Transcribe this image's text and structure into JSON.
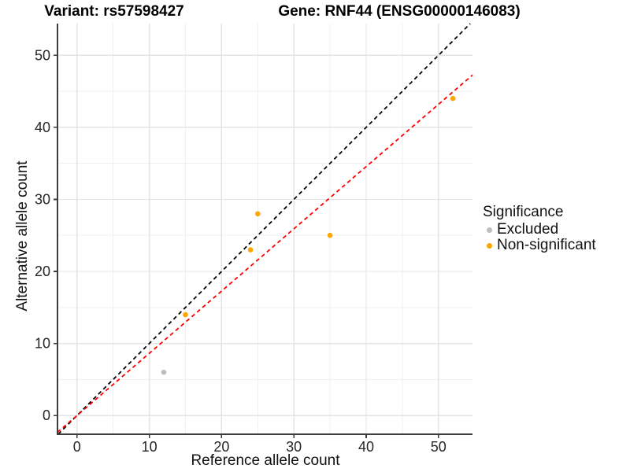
{
  "colors": {
    "axis": "#3d3d3d",
    "grid_major": "#e4e4e4",
    "grid_minor": "#f0f0f0",
    "tick_text": "#262626",
    "excluded": "#bebebe",
    "non_significant": "#ffa500",
    "identity_line": "#000000",
    "fit_line": "#ff0000"
  },
  "chart_data": {
    "type": "scatter",
    "titles": [
      "Variant: rs57598427",
      "Gene: RNF44 (ENSG00000146083)"
    ],
    "xlabel": "Reference allele count",
    "ylabel": "Alternative allele count",
    "xlim": [
      -2.7,
      54.7
    ],
    "ylim": [
      -2.6,
      54.4
    ],
    "x_major_ticks": [
      0,
      10,
      20,
      30,
      40,
      50
    ],
    "x_minor_gridlines": [
      5,
      15,
      25,
      35,
      45
    ],
    "y_major_ticks": [
      0,
      10,
      20,
      30,
      40,
      50
    ],
    "y_minor_gridlines": [
      5,
      15,
      25,
      35,
      45
    ],
    "grid": "major+minor",
    "legend_position": "right",
    "legend_title": "Significance",
    "series": [
      {
        "name": "Excluded",
        "color": "#bebebe",
        "points": [
          [
            12,
            6
          ]
        ]
      },
      {
        "name": "Non-significant",
        "color": "#ffa500",
        "points": [
          [
            15,
            14
          ],
          [
            24,
            23
          ],
          [
            25,
            28
          ],
          [
            35,
            25
          ],
          [
            52,
            44
          ]
        ]
      }
    ],
    "lines": [
      {
        "name": "identity-line",
        "style": "dashed",
        "color": "#000000",
        "slope": 1,
        "intercept": 0
      },
      {
        "name": "fit-line",
        "style": "dashed",
        "color": "#ff0000",
        "slope": 0.864,
        "intercept": 0
      }
    ]
  }
}
